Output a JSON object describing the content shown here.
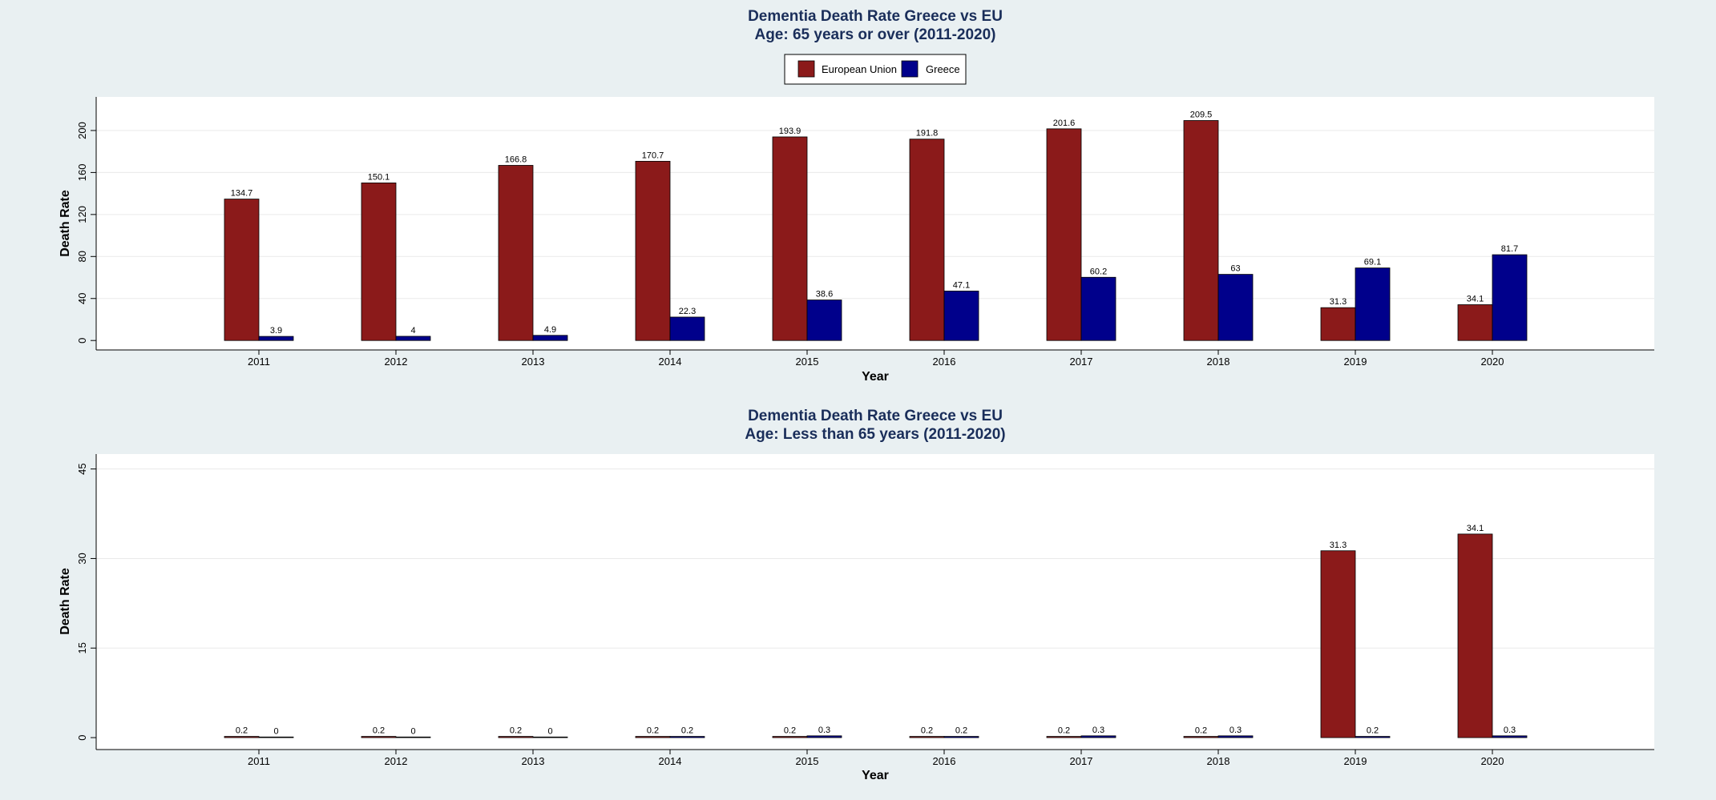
{
  "legend": {
    "items": [
      {
        "label": "European Union",
        "color": "#8b1a1a"
      },
      {
        "label": "Greece",
        "color": "#00008b"
      }
    ]
  },
  "chart_data": [
    {
      "type": "bar",
      "title": "Dementia Death Rate Greece vs EU",
      "subtitle": "Age: 65 years or over (2011-2020)",
      "xlabel": "Year",
      "ylabel": "Death Rate",
      "categories": [
        "2011",
        "2012",
        "2013",
        "2014",
        "2015",
        "2016",
        "2017",
        "2018",
        "2019",
        "2020"
      ],
      "series": [
        {
          "name": "European Union",
          "values": [
            134.7,
            150.1,
            166.8,
            170.7,
            193.9,
            191.8,
            201.6,
            209.5,
            31.3,
            34.1
          ]
        },
        {
          "name": "Greece",
          "values": [
            3.9,
            4,
            4.9,
            22.3,
            38.6,
            47.1,
            60.2,
            63,
            69.1,
            81.7
          ]
        }
      ],
      "value_labels": [
        [
          "134.7",
          "150.1",
          "166.8",
          "170.7",
          "193.9",
          "191.8",
          "201.6",
          "209.5",
          "31.3",
          "34.1"
        ],
        [
          "3.9",
          "4",
          "4.9",
          "22.3",
          "38.6",
          "47.1",
          "60.2",
          "63",
          "69.1",
          "81.7"
        ]
      ],
      "yticks": [
        0,
        40,
        80,
        120,
        160,
        200
      ],
      "ylim": [
        -9,
        232
      ],
      "grid": true
    },
    {
      "type": "bar",
      "title": "Dementia Death Rate Greece vs EU",
      "subtitle": "Age: Less than 65 years (2011-2020)",
      "xlabel": "Year",
      "ylabel": "Death Rate",
      "categories": [
        "2011",
        "2012",
        "2013",
        "2014",
        "2015",
        "2016",
        "2017",
        "2018",
        "2019",
        "2020"
      ],
      "series": [
        {
          "name": "European Union",
          "values": [
            0.2,
            0.2,
            0.2,
            0.2,
            0.2,
            0.2,
            0.2,
            0.2,
            31.3,
            34.1
          ]
        },
        {
          "name": "Greece",
          "values": [
            0,
            0,
            0,
            0.2,
            0.3,
            0.2,
            0.3,
            0.3,
            0.2,
            0.3
          ]
        }
      ],
      "value_labels": [
        [
          "0.2",
          "0.2",
          "0.2",
          "0.2",
          "0.2",
          "0.2",
          "0.2",
          "0.2",
          "31.3",
          "34.1"
        ],
        [
          "0",
          "0",
          "0",
          "0.2",
          "0.3",
          "0.2",
          "0.3",
          "0.3",
          "0.2",
          "0.3"
        ]
      ],
      "yticks": [
        0,
        15,
        30,
        45
      ],
      "ylim": [
        -2,
        47.5
      ],
      "grid": true
    }
  ]
}
